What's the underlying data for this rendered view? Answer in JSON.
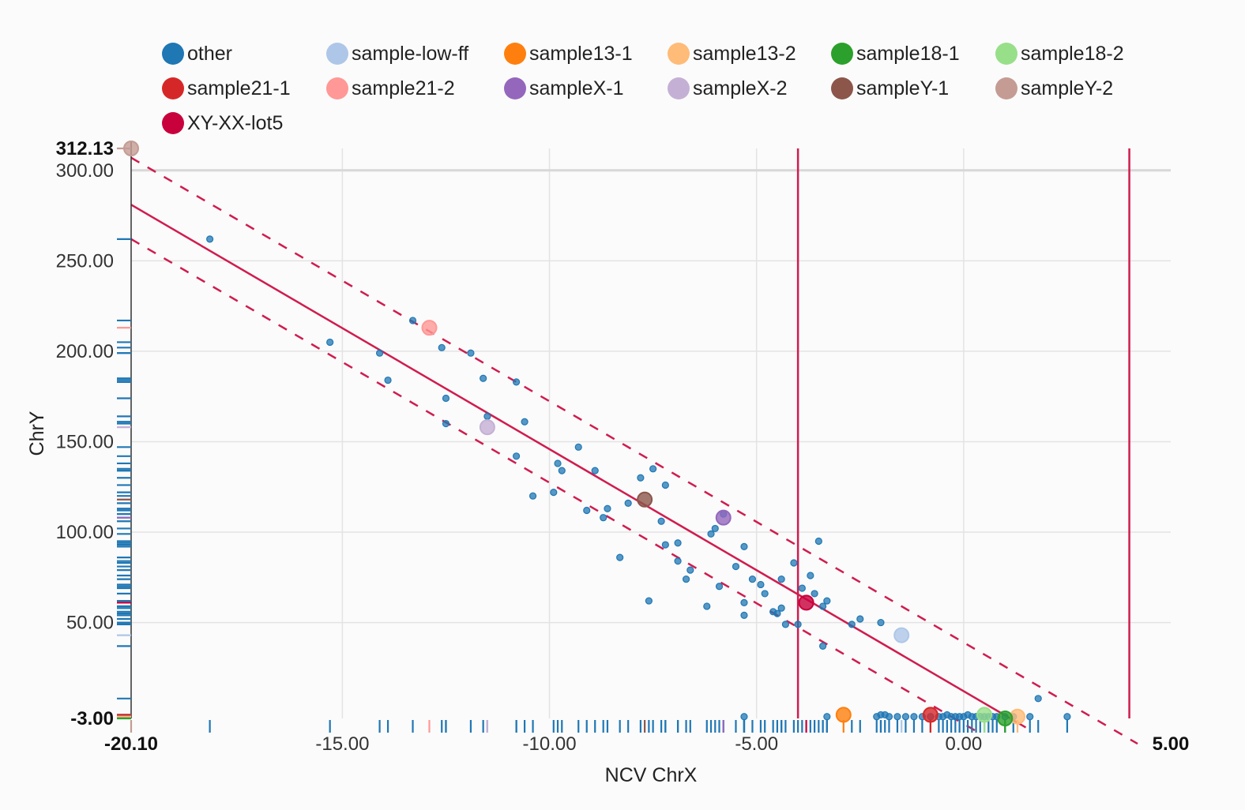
{
  "chart_data": {
    "type": "scatter",
    "xlabel": "NCV ChrX",
    "ylabel": "ChrY",
    "xlim": [
      -20.1,
      5.0
    ],
    "ylim": [
      -3.0,
      312.13
    ],
    "x_ticks": [
      "-15.00",
      "-10.00",
      "-5.00",
      "0.00"
    ],
    "y_ticks": [
      "300.00",
      "250.00",
      "200.00",
      "150.00",
      "100.00",
      "50.00"
    ],
    "x_min_label": "-20.10",
    "x_max_label": "5.00",
    "y_min_label": "-3.00",
    "y_max_label": "312.13",
    "grid": true,
    "legend_position": "top",
    "series_colors": {
      "other": "#1f77b4",
      "sample-low-ff": "#aec7e8",
      "sample13-1": "#ff7f0e",
      "sample13-2": "#ffbb78",
      "sample18-1": "#2ca02c",
      "sample18-2": "#98df8a",
      "sample21-1": "#d62728",
      "sample21-2": "#ff9896",
      "sampleX-1": "#9467bd",
      "sampleX-2": "#c5b0d5",
      "sampleY-1": "#8c564b",
      "sampleY-2": "#c49c94",
      "XY-XX-lot5": "#c8003c"
    },
    "legend": [
      "other",
      "sample-low-ff",
      "sample13-1",
      "sample13-2",
      "sample18-1",
      "sample18-2",
      "sample21-1",
      "sample21-2",
      "sampleX-1",
      "sampleX-2",
      "sampleY-1",
      "sampleY-2",
      "XY-XX-lot5"
    ],
    "reference_lines": {
      "color": "#d01c4e",
      "regression": [
        [
          -20.1,
          281
        ],
        [
          1.5,
          -8
        ]
      ],
      "upper_band": [
        [
          -20.1,
          307
        ],
        [
          4.2,
          -17
        ]
      ],
      "lower_band": [
        [
          -20.1,
          262
        ],
        [
          0.3,
          -10
        ]
      ],
      "vertical_x": [
        -4.0,
        4.0
      ]
    },
    "series": [
      {
        "name": "other",
        "points": [
          [
            -18.2,
            262
          ],
          [
            -15.3,
            205
          ],
          [
            -14.1,
            199
          ],
          [
            -13.9,
            184
          ],
          [
            -13.3,
            217
          ],
          [
            -12.6,
            202
          ],
          [
            -12.5,
            174
          ],
          [
            -12.5,
            160
          ],
          [
            -11.9,
            199
          ],
          [
            -11.6,
            185
          ],
          [
            -11.5,
            164
          ],
          [
            -10.8,
            183
          ],
          [
            -10.8,
            142
          ],
          [
            -10.6,
            161
          ],
          [
            -10.4,
            120
          ],
          [
            -9.9,
            122
          ],
          [
            -9.8,
            138
          ],
          [
            -9.7,
            134
          ],
          [
            -9.3,
            147
          ],
          [
            -9.1,
            112
          ],
          [
            -8.9,
            134
          ],
          [
            -8.7,
            108
          ],
          [
            -8.6,
            113
          ],
          [
            -8.3,
            86
          ],
          [
            -8.1,
            116
          ],
          [
            -7.8,
            130
          ],
          [
            -7.6,
            62
          ],
          [
            -7.5,
            135
          ],
          [
            -7.3,
            106
          ],
          [
            -7.2,
            126
          ],
          [
            -7.2,
            93
          ],
          [
            -6.9,
            94
          ],
          [
            -6.9,
            84
          ],
          [
            -6.7,
            74
          ],
          [
            -6.6,
            79
          ],
          [
            -6.2,
            59
          ],
          [
            -6.1,
            99
          ],
          [
            -6.0,
            102
          ],
          [
            -5.9,
            70
          ],
          [
            -5.8,
            110
          ],
          [
            -5.5,
            81
          ],
          [
            -5.3,
            92
          ],
          [
            -5.3,
            61
          ],
          [
            -5.3,
            54
          ],
          [
            -5.1,
            74
          ],
          [
            -4.9,
            71
          ],
          [
            -4.8,
            66
          ],
          [
            -4.6,
            56
          ],
          [
            -4.5,
            55
          ],
          [
            -4.4,
            74
          ],
          [
            -4.4,
            58
          ],
          [
            -4.3,
            49
          ],
          [
            -4.1,
            83
          ],
          [
            -4.0,
            49
          ],
          [
            -3.9,
            69
          ],
          [
            -3.7,
            76
          ],
          [
            -3.6,
            66
          ],
          [
            -3.5,
            95
          ],
          [
            -3.4,
            59
          ],
          [
            -3.3,
            62
          ],
          [
            -2.7,
            49
          ],
          [
            -2.5,
            52
          ],
          [
            -2.0,
            50
          ],
          [
            -3.4,
            37
          ],
          [
            -5.3,
            -2
          ],
          [
            -3.3,
            -2
          ],
          [
            -2.1,
            -2
          ],
          [
            -2.0,
            -1
          ],
          [
            -1.9,
            -1
          ],
          [
            -1.8,
            -2
          ],
          [
            -1.6,
            -2
          ],
          [
            -1.4,
            -2
          ],
          [
            -1.2,
            -2
          ],
          [
            -1.0,
            -2
          ],
          [
            -0.8,
            -2
          ],
          [
            -0.6,
            -2
          ],
          [
            -0.5,
            -2
          ],
          [
            -0.4,
            -1
          ],
          [
            -0.3,
            -2
          ],
          [
            -0.2,
            -2
          ],
          [
            -0.1,
            -2
          ],
          [
            0.0,
            -2
          ],
          [
            0.1,
            -1
          ],
          [
            0.2,
            -2
          ],
          [
            0.3,
            -2
          ],
          [
            0.4,
            -2
          ],
          [
            0.5,
            -2
          ],
          [
            0.6,
            -2
          ],
          [
            0.7,
            -2
          ],
          [
            0.8,
            -2
          ],
          [
            1.0,
            -2
          ],
          [
            1.2,
            -2
          ],
          [
            1.6,
            -2
          ],
          [
            1.8,
            8
          ],
          [
            2.5,
            -2
          ]
        ]
      },
      {
        "name": "sample-low-ff",
        "points": [
          [
            -1.5,
            43
          ]
        ]
      },
      {
        "name": "sample13-1",
        "points": [
          [
            -2.9,
            -1
          ]
        ]
      },
      {
        "name": "sample13-2",
        "points": [
          [
            1.3,
            -2
          ]
        ]
      },
      {
        "name": "sample18-1",
        "points": [
          [
            1.0,
            -3
          ]
        ]
      },
      {
        "name": "sample18-2",
        "points": [
          [
            0.5,
            -1
          ]
        ]
      },
      {
        "name": "sample21-1",
        "points": [
          [
            -0.8,
            -1
          ]
        ]
      },
      {
        "name": "sample21-2",
        "points": [
          [
            -12.9,
            213
          ]
        ]
      },
      {
        "name": "sampleX-1",
        "points": [
          [
            -5.8,
            108
          ]
        ]
      },
      {
        "name": "sampleX-2",
        "points": [
          [
            -11.5,
            158
          ]
        ]
      },
      {
        "name": "sampleY-1",
        "points": [
          [
            -7.7,
            118
          ]
        ]
      },
      {
        "name": "sampleY-2",
        "points": [
          [
            -20.1,
            312.13
          ]
        ]
      },
      {
        "name": "XY-XX-lot5",
        "points": [
          [
            -3.8,
            61
          ]
        ]
      }
    ]
  }
}
